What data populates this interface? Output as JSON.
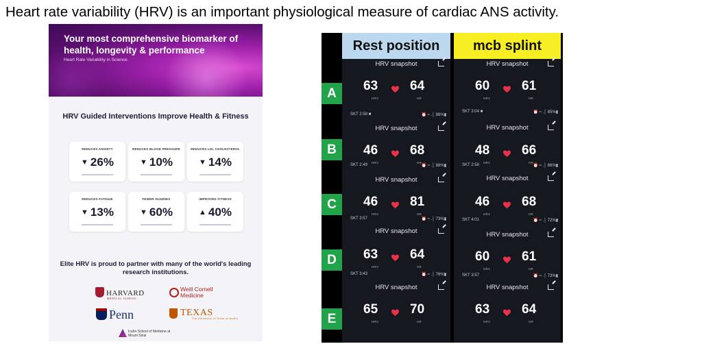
{
  "headline": "Heart rate variability (HRV) is an important physiological measure of cardiac ANS activity.",
  "poster": {
    "hero_title": "Your most comprehensive biomarker of health, longevity & performance",
    "hero_subtitle": "Heart Rate Variability in Science",
    "section_title": "HRV Guided Interventions Improve Health & Fitness",
    "cards": [
      {
        "label": "REDUCES ANXIETY",
        "direction": "down",
        "value": "26%"
      },
      {
        "label": "REDUCES BLOOD PRESSURE",
        "direction": "down",
        "value": "10%"
      },
      {
        "label": "REDUCES LDL CHOLESTEROL",
        "direction": "down",
        "value": "14%"
      },
      {
        "label": "REDUCES FATIGUE",
        "direction": "down",
        "value": "13%"
      },
      {
        "label": "FEWER INJURIES",
        "direction": "down",
        "value": "60%"
      },
      {
        "label": "IMPROVED FITNESS",
        "direction": "up",
        "value": "40%"
      }
    ],
    "partner_text": "Elite HRV is proud to partner with many of the world's leading research institutions.",
    "logos": {
      "harvard": "HARVARD",
      "harvard_sub": "MEDICAL SCHOOL",
      "cornell_1": "Weill Cornell",
      "cornell_2": "Medicine",
      "penn": "Penn",
      "texas": "TEXAS",
      "texas_sub": "The University of Texas at Austin",
      "sinai_1": "Icahn School of Medicine at",
      "sinai_2": "Mount Sinai"
    }
  },
  "figure": {
    "columns": [
      "Rest position",
      "mcb splint"
    ],
    "snapshot_title": "HRV snapshot",
    "hrv_label": "HRV",
    "hr_label": "HR",
    "rows": [
      {
        "tag": "A",
        "rest": {
          "hrv": "63",
          "hr": "64",
          "skt": "SKT 2:58 ■",
          "battery": "⏰ ≈ .│ 86%▮"
        },
        "splint": {
          "hrv": "60",
          "hr": "61",
          "skt": "SKT 3:04 ■",
          "battery": "⏰ ≈ .│ 85%▮"
        }
      },
      {
        "tag": "B",
        "rest": {
          "hrv": "46",
          "hr": "68",
          "skt": "SKT 2:49",
          "battery": "⏰ ≈ .│ 88%▮"
        },
        "splint": {
          "hrv": "48",
          "hr": "66",
          "skt": "SKT 2:58",
          "battery": "⏰ ≈ .│ 86%▮"
        }
      },
      {
        "tag": "C",
        "rest": {
          "hrv": "46",
          "hr": "81",
          "skt": "SKT 3:57",
          "battery": "⏰ ≈ .│ 73%▮"
        },
        "splint": {
          "hrv": "46",
          "hr": "68",
          "skt": "SKT 4:01",
          "battery": "⏰ ≈ .│ 72%▮"
        }
      },
      {
        "tag": "D",
        "rest": {
          "hrv": "63",
          "hr": "64",
          "skt": "SKT 3:43",
          "battery": "⏰ ≈ .│ 76%▮"
        },
        "splint": {
          "hrv": "60",
          "hr": "61",
          "skt": "SKT 3:57",
          "battery": "⏰ ≈ .│ 73%▮"
        }
      },
      {
        "tag": "E",
        "rest": {
          "hrv": "65",
          "hr": "70"
        },
        "splint": {
          "hrv": "63",
          "hr": "64"
        }
      }
    ]
  },
  "colors": {
    "rest_header": "#bcd8ee",
    "splint_header": "#f7ef24",
    "row_tag": "#21a34a",
    "heart": "#e8324a"
  }
}
